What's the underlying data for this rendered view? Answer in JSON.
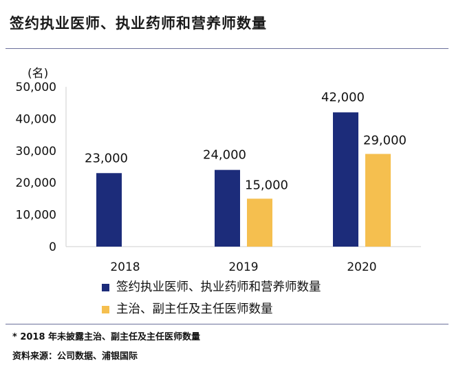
{
  "title": "签约执业医师、执业药师和营养师数量",
  "footnote": "* 2018 年未披露主治、副主任及主任医师数量",
  "source": "资料来源：公司数据、浦银国际",
  "chart_data": {
    "type": "bar",
    "categories": [
      "2018",
      "2019",
      "2020"
    ],
    "series": [
      {
        "name": "签约执业医师、执业药师和营养师数量",
        "color": "#1c2c7a",
        "values": [
          23000,
          24000,
          42000
        ],
        "labels": [
          "23,000",
          "24,000",
          "42,000"
        ]
      },
      {
        "name": "主治、副主任及主任医师数量",
        "color": "#f5bf4f",
        "values": [
          null,
          15000,
          29000
        ],
        "labels": [
          "",
          "15,000",
          "29,000"
        ]
      }
    ],
    "ylabel": "(名)",
    "ylim": [
      0,
      50000
    ],
    "yticks": [
      0,
      10000,
      20000,
      30000,
      40000,
      50000
    ],
    "ytick_labels": [
      "0",
      "10,000",
      "20,000",
      "30,000",
      "40,000",
      "50,000"
    ],
    "grid": false,
    "legend": "bottom"
  }
}
